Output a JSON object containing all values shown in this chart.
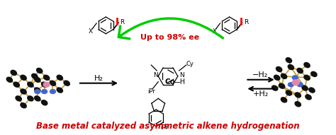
{
  "title": "Base metal catalyzed asymmetric alkene hydrogenation",
  "title_color": "#cc0000",
  "title_fontstyle": "italic",
  "title_fontweight": "bold",
  "title_fontsize": 8.5,
  "bg_color": "#ffffff",
  "green_arrow_text": "Up to 98% ee",
  "green_arrow_color": "#00cc00",
  "green_arrow_text_color": "#cc0000",
  "gold_color": "#C8A040",
  "h2_label": "H₂",
  "minus_h2": "−H₂",
  "plus_h2": "+H₂",
  "figsize": [
    4.74,
    1.91
  ],
  "dpi": 100
}
